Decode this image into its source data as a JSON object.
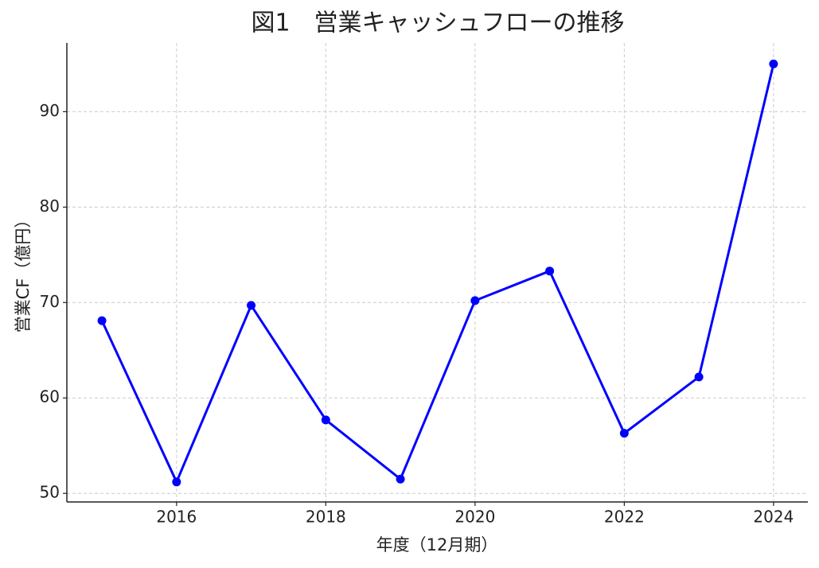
{
  "chart_data": {
    "type": "line",
    "title": "図1　営業キャッシュフローの推移",
    "x_label": "年度（12月期）",
    "y_label": "営業CF（億円）",
    "x": [
      2015,
      2016,
      2017,
      2018,
      2019,
      2020,
      2021,
      2022,
      2023,
      2024
    ],
    "series": [
      {
        "name": "営業CF",
        "color": "#0000ff",
        "values": [
          68.1,
          51.2,
          69.7,
          57.7,
          51.5,
          70.2,
          73.3,
          56.3,
          62.2,
          95.0
        ]
      }
    ],
    "xlim": [
      2014.53,
      2024.46
    ],
    "xticks": [
      2016,
      2018,
      2020,
      2022,
      2024
    ],
    "ylim": [
      49.1,
      97.2
    ],
    "yticks": [
      50,
      60,
      70,
      80,
      90
    ],
    "grid": true
  }
}
